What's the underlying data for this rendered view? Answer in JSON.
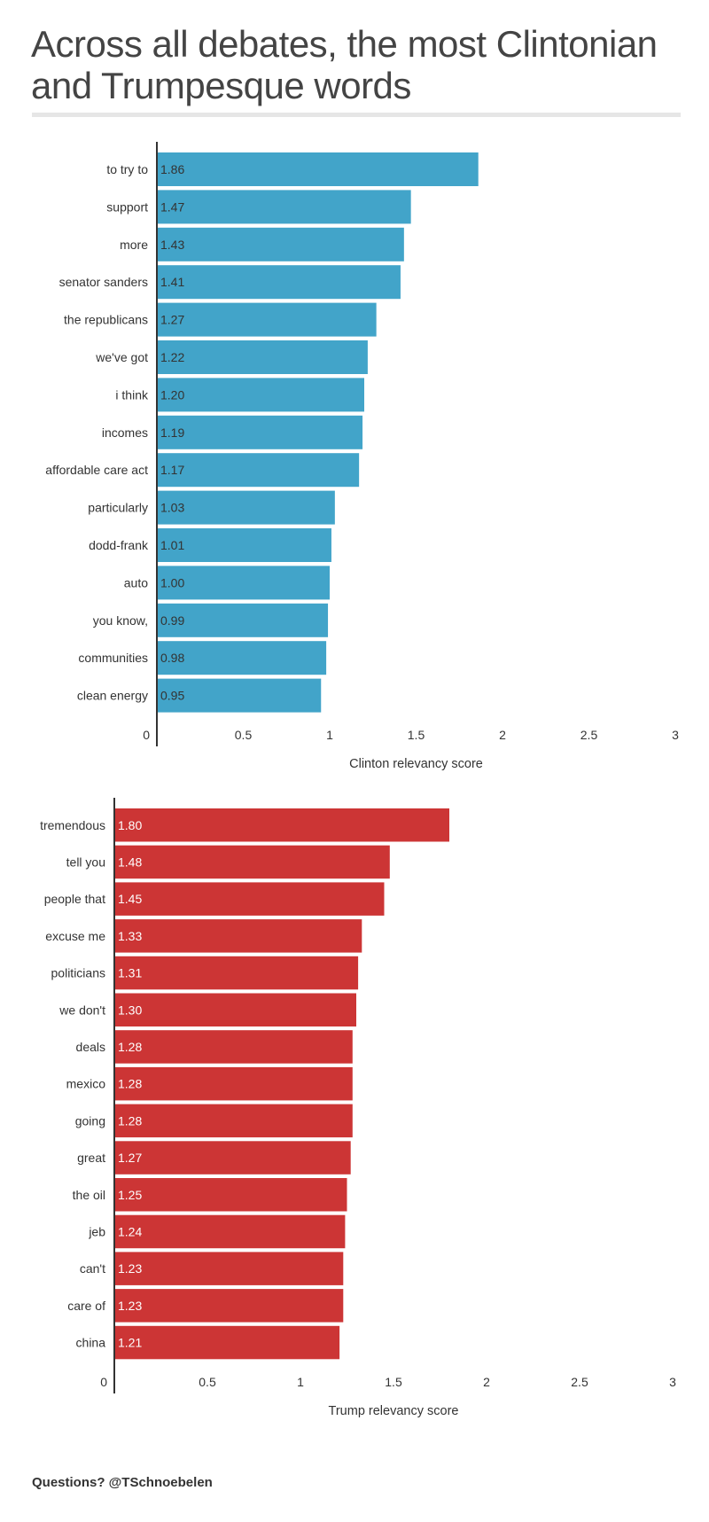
{
  "title": "Across all debates, the most Clintonian and Trumpesque words",
  "footer": "Questions? @TSchnoebelen",
  "chart_data": [
    {
      "type": "bar",
      "orientation": "horizontal",
      "color": "#42a4c9",
      "value_label_color": "#333333",
      "xlabel": "Clinton relevancy score",
      "xlim": [
        0,
        3
      ],
      "ticks": [
        "0",
        "0.5",
        "1",
        "1.5",
        "2",
        "2.5",
        "3"
      ],
      "grid": false,
      "categories": [
        "to try to",
        "support",
        "more",
        "senator sanders",
        "the republicans",
        "we've got",
        "i think",
        "incomes",
        "affordable care act",
        "particularly",
        "dodd-frank",
        "auto",
        "you know,",
        "communities",
        "clean energy"
      ],
      "values": [
        1.86,
        1.47,
        1.43,
        1.41,
        1.27,
        1.22,
        1.2,
        1.19,
        1.17,
        1.03,
        1.01,
        1.0,
        0.99,
        0.98,
        0.95
      ],
      "value_labels": [
        "1.86",
        "1.47",
        "1.43",
        "1.41",
        "1.27",
        "1.22",
        "1.20",
        "1.19",
        "1.17",
        "1.03",
        "1.01",
        "1.00",
        "0.99",
        "0.98",
        "0.95"
      ]
    },
    {
      "type": "bar",
      "orientation": "horizontal",
      "color": "#cc3535",
      "value_label_color": "#ffffff",
      "xlabel": "Trump relevancy score",
      "xlim": [
        0,
        3
      ],
      "ticks": [
        "0",
        "0.5",
        "1",
        "1.5",
        "2",
        "2.5",
        "3"
      ],
      "grid": false,
      "categories": [
        "tremendous",
        "tell you",
        "people that",
        "excuse me",
        "politicians",
        "we don't",
        "deals",
        "mexico",
        "going",
        "great",
        "the oil",
        "jeb",
        "can't",
        "care of",
        "china"
      ],
      "values": [
        1.8,
        1.48,
        1.45,
        1.33,
        1.31,
        1.3,
        1.28,
        1.28,
        1.28,
        1.27,
        1.25,
        1.24,
        1.23,
        1.23,
        1.21
      ],
      "value_labels": [
        "1.80",
        "1.48",
        "1.45",
        "1.33",
        "1.31",
        "1.30",
        "1.28",
        "1.28",
        "1.28",
        "1.27",
        "1.25",
        "1.24",
        "1.23",
        "1.23",
        "1.21"
      ]
    }
  ]
}
